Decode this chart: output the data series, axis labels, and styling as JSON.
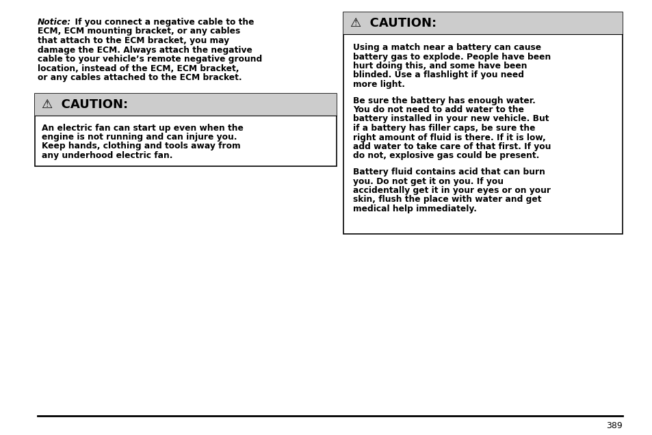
{
  "bg_color": "#ffffff",
  "page_number": "389",
  "caution_header_bg": "#cccccc",
  "box_border_color": "#000000",
  "font_size_body": 8.8,
  "font_size_header": 13.0,
  "font_size_notice": 8.8,
  "font_size_page": 9.0,
  "notice_line1_italic": "Notice:",
  "notice_line1_rest": "  If you connect a negative cable to the",
  "notice_lines": [
    "ECM, ECM mounting bracket, or any cables",
    "that attach to the ECM bracket, you may",
    "damage the ECM. Always attach the negative",
    "cable to your vehicle’s remote negative ground",
    "location, instead of the ECM, ECM bracket,",
    "or any cables attached to the ECM bracket."
  ],
  "left_caution_header": "⚠  CAUTION:",
  "left_caution_body": [
    "An electric fan can start up even when the",
    "engine is not running and can injure you.",
    "Keep hands, clothing and tools away from",
    "any underhood electric fan."
  ],
  "right_caution_header": "⚠  CAUTION:",
  "right_para1": [
    "Using a match near a battery can cause",
    "battery gas to explode. People have been",
    "hurt doing this, and some have been",
    "blinded. Use a flashlight if you need",
    "more light."
  ],
  "right_para2": [
    "Be sure the battery has enough water.",
    "You do not need to add water to the",
    "battery installed in your new vehicle. But",
    "if a battery has filler caps, be sure the",
    "right amount of fluid is there. If it is low,",
    "add water to take care of that first. If you",
    "do not, explosive gas could be present."
  ],
  "right_para3": [
    "Battery fluid contains acid that can burn",
    "you. Do not get it on you. If you",
    "accidentally get it in your eyes or on your",
    "skin, flush the place with water and get",
    "medical help immediately."
  ]
}
